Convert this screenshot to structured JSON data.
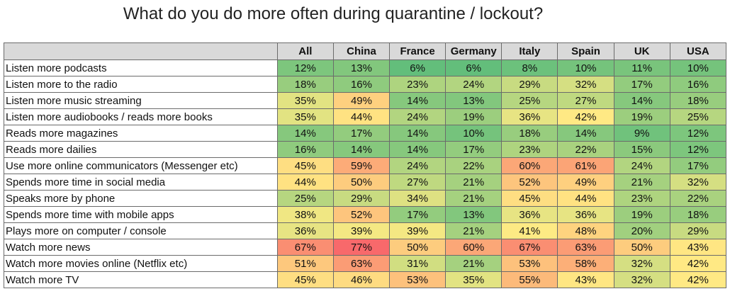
{
  "chart_data": {
    "type": "heatmap",
    "title": "What do you do more often during quarantine / lockout?",
    "columns": [
      "All",
      "China",
      "France",
      "Germany",
      "Italy",
      "Spain",
      "UK",
      "USA"
    ],
    "rows": [
      {
        "label": "Listen more podcasts",
        "values": [
          12,
          13,
          6,
          6,
          8,
          10,
          11,
          10
        ]
      },
      {
        "label": "Listen more to the radio",
        "values": [
          18,
          16,
          23,
          24,
          29,
          32,
          17,
          16
        ]
      },
      {
        "label": "Listen more music streaming",
        "values": [
          35,
          49,
          14,
          13,
          25,
          27,
          14,
          18
        ]
      },
      {
        "label": "Listen more audiobooks / reads more books",
        "values": [
          35,
          44,
          24,
          19,
          36,
          42,
          19,
          25
        ]
      },
      {
        "label": "Reads more magazines",
        "values": [
          14,
          17,
          14,
          10,
          18,
          14,
          9,
          12
        ]
      },
      {
        "label": "Reads more dailies",
        "values": [
          16,
          14,
          14,
          17,
          23,
          22,
          15,
          12
        ]
      },
      {
        "label": "Use more online communicators (Messenger etc)",
        "values": [
          45,
          59,
          24,
          22,
          60,
          61,
          24,
          17
        ]
      },
      {
        "label": "Spends more time in social media",
        "values": [
          44,
          50,
          27,
          21,
          52,
          49,
          21,
          32
        ]
      },
      {
        "label": "Speaks more by phone",
        "values": [
          25,
          29,
          34,
          21,
          45,
          44,
          23,
          22
        ]
      },
      {
        "label": "Spends more time with mobile apps",
        "values": [
          38,
          52,
          17,
          13,
          36,
          36,
          19,
          18
        ]
      },
      {
        "label": "Plays more on computer / console",
        "values": [
          36,
          39,
          39,
          21,
          41,
          48,
          20,
          29
        ]
      },
      {
        "label": "Watch more news",
        "values": [
          67,
          77,
          50,
          60,
          67,
          63,
          50,
          43
        ]
      },
      {
        "label": "Watch more movies online (Netflix etc)",
        "values": [
          51,
          63,
          31,
          21,
          53,
          58,
          32,
          42
        ]
      },
      {
        "label": "Watch more TV",
        "values": [
          45,
          46,
          53,
          35,
          55,
          43,
          32,
          42
        ]
      }
    ],
    "value_suffix": "%",
    "colors": {
      "low": "#63be7b",
      "mid": "#ffeb84",
      "high": "#f8696b",
      "header_bg": "#d9d9d9",
      "border": "#6b6b6b"
    },
    "color_scale": {
      "min": 6,
      "mid": 41.5,
      "max": 77
    }
  }
}
